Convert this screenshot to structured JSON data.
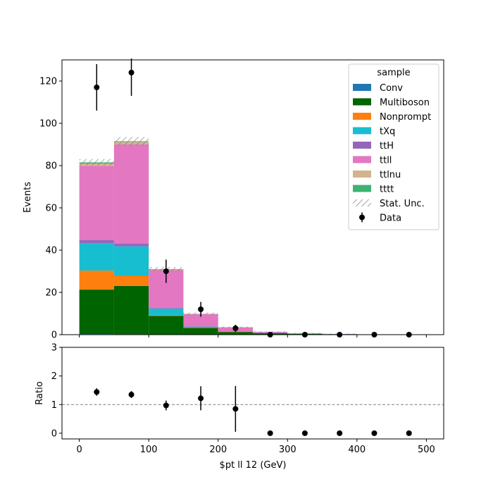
{
  "chart_data": [
    {
      "type": "bar",
      "stacked": true,
      "bin_edges": [
        0,
        50,
        100,
        150,
        200,
        250,
        300,
        350,
        400,
        450,
        500
      ],
      "xlim": [
        -25,
        525
      ],
      "ylim": [
        0,
        130
      ],
      "ylabel": "Events",
      "yticks": [
        0,
        20,
        40,
        60,
        80,
        100,
        120
      ],
      "legend": {
        "title": "sample",
        "placement": "upper right"
      },
      "series": [
        {
          "name": "Conv",
          "color": "#1f77b4",
          "values": [
            0.3,
            0.2,
            0.05,
            0.0,
            0.0,
            0.0,
            0.0,
            0.0,
            0.0,
            0.0
          ]
        },
        {
          "name": "Multiboson",
          "color": "#006400",
          "values": [
            21,
            22.8,
            8.8,
            3.2,
            1.3,
            0.7,
            0.4,
            0.25,
            0.1,
            0.1
          ]
        },
        {
          "name": "Nonprompt",
          "color": "#ff7f0e",
          "values": [
            9,
            5,
            0.3,
            0.1,
            0.05,
            0.0,
            0.0,
            0.0,
            0.0,
            0.0
          ]
        },
        {
          "name": "tXq",
          "color": "#17becf",
          "values": [
            13,
            13.8,
            3.2,
            0.5,
            0.25,
            0.15,
            0.05,
            0.05,
            0.0,
            0.0
          ]
        },
        {
          "name": "ttH",
          "color": "#9467bd",
          "values": [
            1.5,
            1.2,
            0.15,
            0.05,
            0.0,
            0.0,
            0.0,
            0.0,
            0.0,
            0.0
          ]
        },
        {
          "name": "ttll",
          "color": "#e377c2",
          "values": [
            35,
            47,
            18,
            5.8,
            1.8,
            0.5,
            0.2,
            0.05,
            0.0,
            0.0
          ]
        },
        {
          "name": "ttlnu",
          "color": "#d2b48c",
          "values": [
            1.2,
            1.2,
            0.3,
            0.1,
            0.05,
            0.0,
            0.0,
            0.0,
            0.0,
            0.0
          ]
        },
        {
          "name": "tttt",
          "color": "#3cb371",
          "values": [
            0.5,
            0.3,
            0.2,
            0.1,
            0.05,
            0.0,
            0.0,
            0.0,
            0.0,
            0.0
          ]
        }
      ],
      "stat_unc": {
        "name": "Stat. Unc.",
        "values": [
          1.6,
          2.0,
          1.0,
          0.6,
          0.3,
          0.25,
          0.25,
          0.2,
          0.1,
          0.1
        ]
      },
      "data": {
        "name": "Data",
        "x": [
          25,
          75,
          125,
          175,
          225,
          275,
          325,
          375,
          425,
          475
        ],
        "y": [
          117,
          124,
          30,
          12,
          3,
          0,
          0,
          0,
          0,
          0
        ],
        "err": [
          11,
          11,
          5.5,
          3.5,
          1.7,
          0,
          0,
          0,
          0,
          0
        ]
      }
    },
    {
      "type": "scatter",
      "xlabel": "$pt ll 12 (GeV)",
      "ylabel": "Ratio",
      "xlim": [
        -25,
        525
      ],
      "ylim": [
        -0.2,
        3
      ],
      "xticks": [
        0,
        100,
        200,
        300,
        400,
        500
      ],
      "yticks": [
        0,
        1,
        2,
        3
      ],
      "reference_line": 1,
      "x": [
        25,
        75,
        125,
        175,
        225,
        275,
        325,
        375,
        425,
        475
      ],
      "y": [
        1.44,
        1.35,
        0.97,
        1.22,
        0.85,
        0,
        0,
        0,
        0,
        0
      ],
      "err": [
        0.13,
        0.12,
        0.17,
        0.42,
        0.8,
        0,
        0,
        0,
        0,
        0
      ]
    }
  ]
}
